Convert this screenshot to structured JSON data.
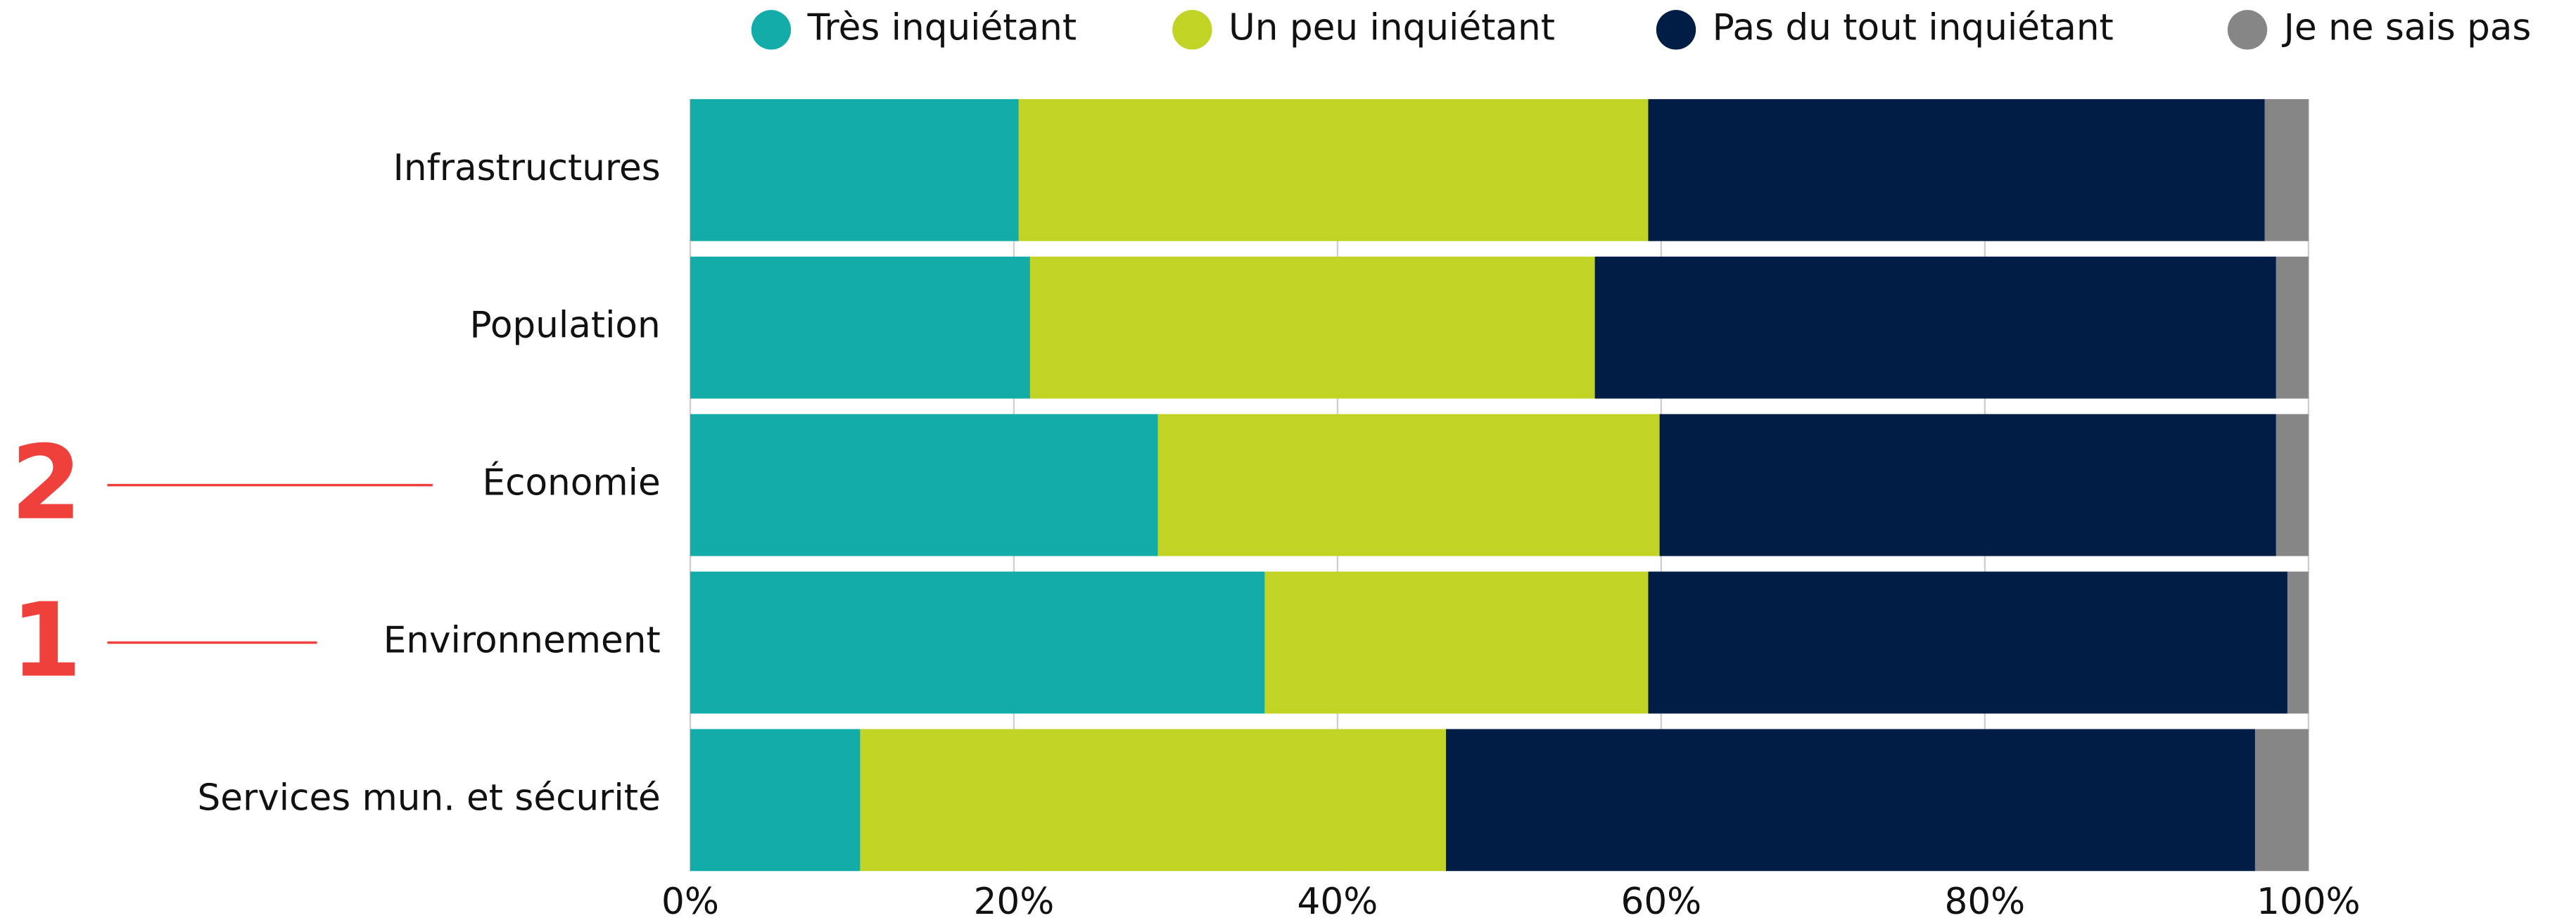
{
  "chart_data": {
    "type": "stacked-barh",
    "categories": [
      "Infrastructures",
      "Population",
      "Économie",
      "Environnement",
      "Services mun. et sécurité"
    ],
    "series": [
      {
        "name": "Très inquiétant",
        "color": "#14aca8",
        "values": [
          20.3,
          21.0,
          28.9,
          35.5,
          10.5
        ]
      },
      {
        "name": "Un peu inquiétant",
        "color": "#c1d325",
        "values": [
          38.9,
          34.9,
          31.0,
          23.7,
          36.2
        ]
      },
      {
        "name": "Pas du tout inquiétant",
        "color": "#001e45",
        "values": [
          38.1,
          42.1,
          38.1,
          39.5,
          50.0
        ]
      },
      {
        "name": "Je ne sais pas",
        "color": "#868686",
        "values": [
          2.7,
          2.0,
          2.0,
          1.3,
          3.3
        ]
      }
    ],
    "xlim": [
      0,
      100
    ],
    "xticks": [
      {
        "value": 0,
        "label": "0%"
      },
      {
        "value": 20,
        "label": "20%"
      },
      {
        "value": 40,
        "label": "40%"
      },
      {
        "value": 60,
        "label": "60%"
      },
      {
        "value": 80,
        "label": "80%"
      },
      {
        "value": 100,
        "label": "100%"
      }
    ],
    "grid": true,
    "legend": "top",
    "annotations": [
      "2",
      "1"
    ]
  }
}
